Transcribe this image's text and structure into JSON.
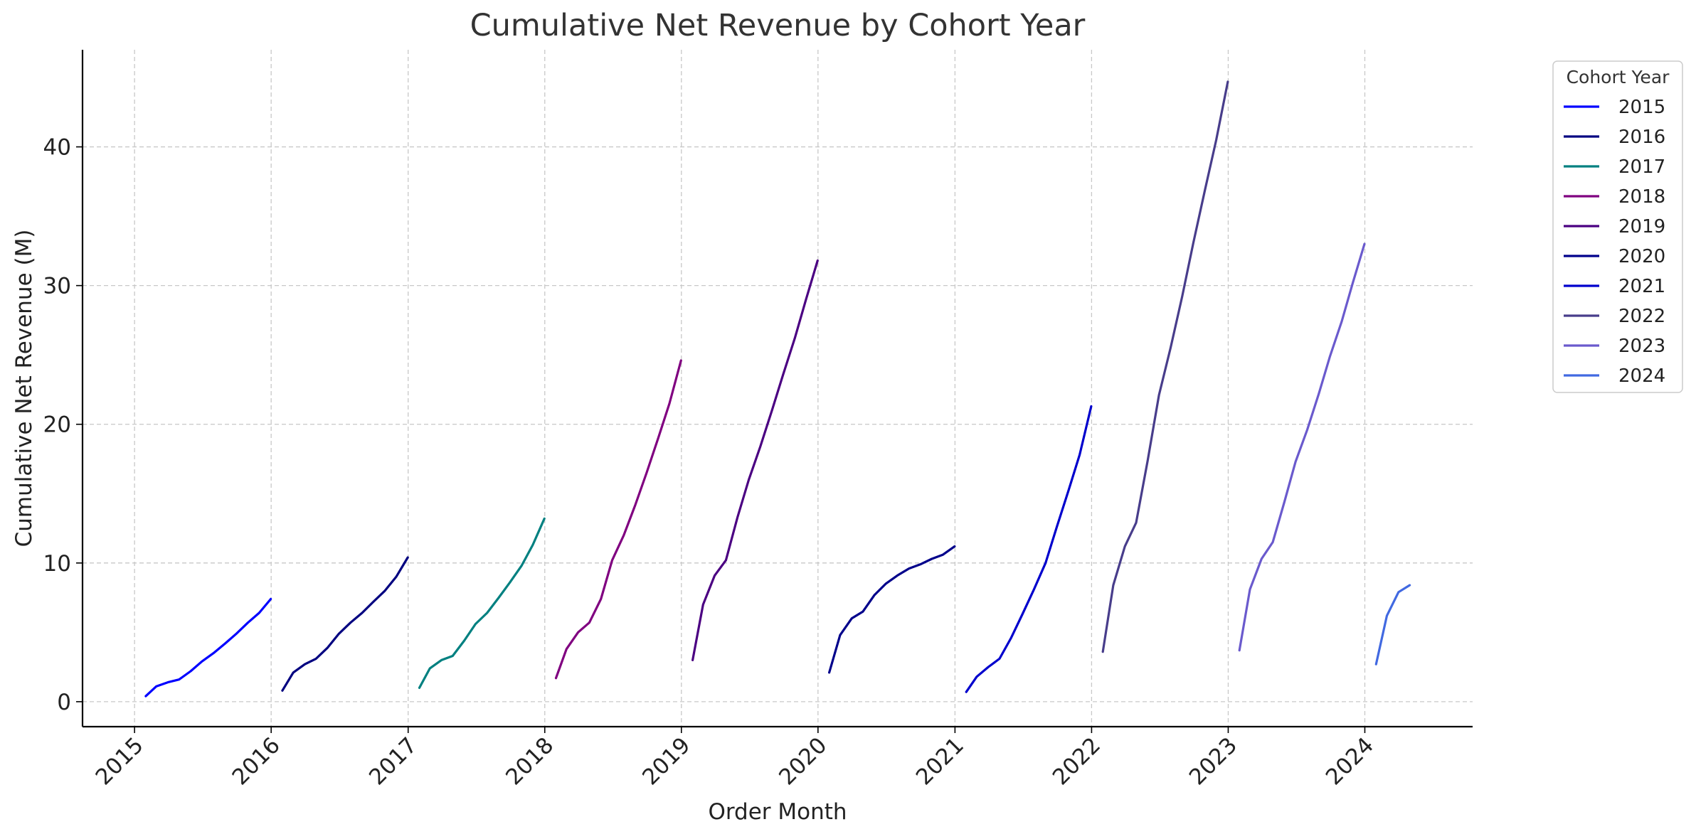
{
  "chart_data": {
    "type": "line",
    "title": "Cumulative Net Revenue by Cohort Year",
    "xlabel": "Order Month",
    "ylabel": "Cumulative Net Revenue (M)",
    "xlim": [
      "2014-08-15",
      "2024-10-15"
    ],
    "ylim": [
      -1.8,
      47
    ],
    "x_ticks": [
      "2015",
      "2016",
      "2017",
      "2018",
      "2019",
      "2020",
      "2021",
      "2022",
      "2023",
      "2024"
    ],
    "y_ticks": [
      0,
      10,
      20,
      30,
      40
    ],
    "grid": true,
    "legend": {
      "title": "Cohort Year",
      "placement": "outside-right-top"
    },
    "series": [
      {
        "name": "2015",
        "color": "#0000ff",
        "x": [
          "2015-01-31",
          "2015-02-28",
          "2015-03-31",
          "2015-04-30",
          "2015-05-31",
          "2015-06-30",
          "2015-07-31",
          "2015-08-31",
          "2015-09-30",
          "2015-10-31",
          "2015-11-30",
          "2015-12-31"
        ],
        "y": [
          0.4,
          1.1,
          1.4,
          1.6,
          2.2,
          2.9,
          3.5,
          4.2,
          4.9,
          5.7,
          6.4,
          7.4
        ]
      },
      {
        "name": "2016",
        "color": "#000080",
        "x": [
          "2016-01-31",
          "2016-02-29",
          "2016-03-31",
          "2016-04-30",
          "2016-05-31",
          "2016-06-30",
          "2016-07-31",
          "2016-08-31",
          "2016-09-30",
          "2016-10-31",
          "2016-11-30",
          "2016-12-31"
        ],
        "y": [
          0.8,
          2.1,
          2.7,
          3.1,
          3.9,
          4.9,
          5.7,
          6.4,
          7.2,
          8.0,
          9.0,
          10.4
        ]
      },
      {
        "name": "2017",
        "color": "#008080",
        "x": [
          "2017-01-31",
          "2017-02-28",
          "2017-03-31",
          "2017-04-30",
          "2017-05-31",
          "2017-06-30",
          "2017-07-31",
          "2017-08-31",
          "2017-09-30",
          "2017-10-31",
          "2017-11-30",
          "2017-12-31"
        ],
        "y": [
          1.0,
          2.4,
          3.0,
          3.3,
          4.4,
          5.6,
          6.4,
          7.5,
          8.6,
          9.8,
          11.3,
          13.2
        ]
      },
      {
        "name": "2018",
        "color": "#800080",
        "x": [
          "2018-01-31",
          "2018-02-28",
          "2018-03-31",
          "2018-04-30",
          "2018-05-31",
          "2018-06-30",
          "2018-07-31",
          "2018-08-31",
          "2018-09-30",
          "2018-10-31",
          "2018-11-30",
          "2018-12-31"
        ],
        "y": [
          1.7,
          3.8,
          5.0,
          5.7,
          7.4,
          10.2,
          12.0,
          14.2,
          16.5,
          19.0,
          21.5,
          24.6
        ]
      },
      {
        "name": "2019",
        "color": "#4b0082",
        "x": [
          "2019-01-31",
          "2019-02-28",
          "2019-03-31",
          "2019-04-30",
          "2019-05-31",
          "2019-06-30",
          "2019-07-31",
          "2019-08-31",
          "2019-09-30",
          "2019-10-31",
          "2019-11-30",
          "2019-12-31"
        ],
        "y": [
          3.0,
          7.0,
          9.1,
          10.2,
          13.3,
          16.0,
          18.4,
          21.0,
          23.6,
          26.2,
          29.0,
          31.8
        ]
      },
      {
        "name": "2020",
        "color": "#00008b",
        "x": [
          "2020-01-31",
          "2020-02-29",
          "2020-03-31",
          "2020-04-30",
          "2020-05-31",
          "2020-06-30",
          "2020-07-31",
          "2020-08-31",
          "2020-09-30",
          "2020-10-31",
          "2020-11-30",
          "2020-12-31"
        ],
        "y": [
          2.1,
          4.8,
          6.0,
          6.5,
          7.7,
          8.5,
          9.1,
          9.6,
          9.9,
          10.3,
          10.6,
          11.2
        ]
      },
      {
        "name": "2021",
        "color": "#0000cd",
        "x": [
          "2021-01-31",
          "2021-02-28",
          "2021-03-31",
          "2021-04-30",
          "2021-05-31",
          "2021-06-30",
          "2021-07-31",
          "2021-08-31",
          "2021-09-30",
          "2021-10-31",
          "2021-11-30",
          "2021-12-31"
        ],
        "y": [
          0.7,
          1.8,
          2.5,
          3.1,
          4.6,
          6.3,
          8.1,
          10.0,
          12.6,
          15.2,
          17.8,
          21.3
        ]
      },
      {
        "name": "2022",
        "color": "#483d8b",
        "x": [
          "2022-01-31",
          "2022-02-28",
          "2022-03-31",
          "2022-04-30",
          "2022-05-31",
          "2022-06-30",
          "2022-07-31",
          "2022-08-31",
          "2022-09-30",
          "2022-10-31",
          "2022-11-30",
          "2022-12-31"
        ],
        "y": [
          3.6,
          8.4,
          11.2,
          12.9,
          17.4,
          22.1,
          25.5,
          29.2,
          33.1,
          36.9,
          40.5,
          44.7
        ]
      },
      {
        "name": "2023",
        "color": "#6a5acd",
        "x": [
          "2023-01-31",
          "2023-02-28",
          "2023-03-31",
          "2023-04-30",
          "2023-05-31",
          "2023-06-30",
          "2023-07-31",
          "2023-08-31",
          "2023-09-30",
          "2023-10-31",
          "2023-11-30",
          "2023-12-31"
        ],
        "y": [
          3.7,
          8.1,
          10.3,
          11.5,
          14.4,
          17.3,
          19.6,
          22.2,
          24.9,
          27.4,
          30.2,
          33.0
        ]
      },
      {
        "name": "2024",
        "color": "#4169e1",
        "x": [
          "2024-01-31",
          "2024-02-29",
          "2024-03-31",
          "2024-04-30"
        ],
        "y": [
          2.7,
          6.2,
          7.9,
          8.4
        ]
      }
    ]
  }
}
